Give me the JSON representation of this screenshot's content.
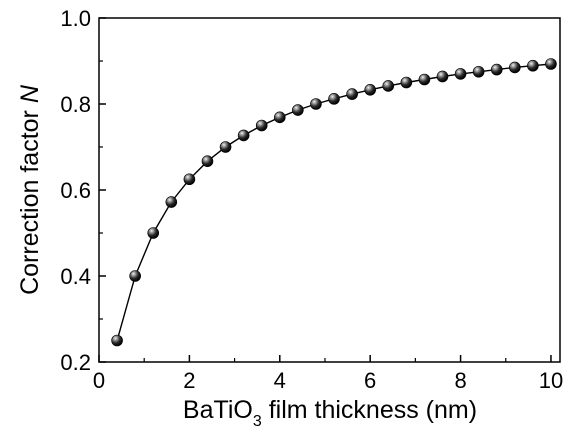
{
  "chart_data": {
    "type": "scatter",
    "xlabel": {
      "prefix": "BaTiO",
      "subscript": "3",
      "suffix": " film thickness (nm)"
    },
    "ylabel": {
      "prefix": "Correction factor ",
      "italic": "N"
    },
    "xlim": [
      0,
      10.2
    ],
    "ylim": [
      0.2,
      1.0
    ],
    "x_ticks": [
      "0",
      "2",
      "4",
      "6",
      "8",
      "10"
    ],
    "x_tick_values": [
      0,
      2,
      4,
      6,
      8,
      10
    ],
    "y_ticks": [
      "0.2",
      "0.4",
      "0.6",
      "0.8",
      "1.0"
    ],
    "y_tick_values": [
      0.2,
      0.4,
      0.6,
      0.8,
      1.0
    ],
    "grid": false,
    "legend": "none",
    "series": [
      {
        "marker": "sphere",
        "line": "solid",
        "color": "#000000",
        "x": [
          0.4,
          0.8,
          1.2,
          1.6,
          2.0,
          2.4,
          2.8,
          3.2,
          3.6,
          4.0,
          4.4,
          4.8,
          5.2,
          5.6,
          6.0,
          6.4,
          6.8,
          7.2,
          7.6,
          8.0,
          8.4,
          8.8,
          9.2,
          9.6,
          10.0
        ],
        "y": [
          0.25,
          0.4,
          0.5,
          0.572,
          0.625,
          0.667,
          0.7,
          0.727,
          0.75,
          0.769,
          0.786,
          0.8,
          0.812,
          0.823,
          0.833,
          0.842,
          0.85,
          0.857,
          0.864,
          0.87,
          0.875,
          0.88,
          0.885,
          0.889,
          0.893
        ]
      }
    ]
  }
}
